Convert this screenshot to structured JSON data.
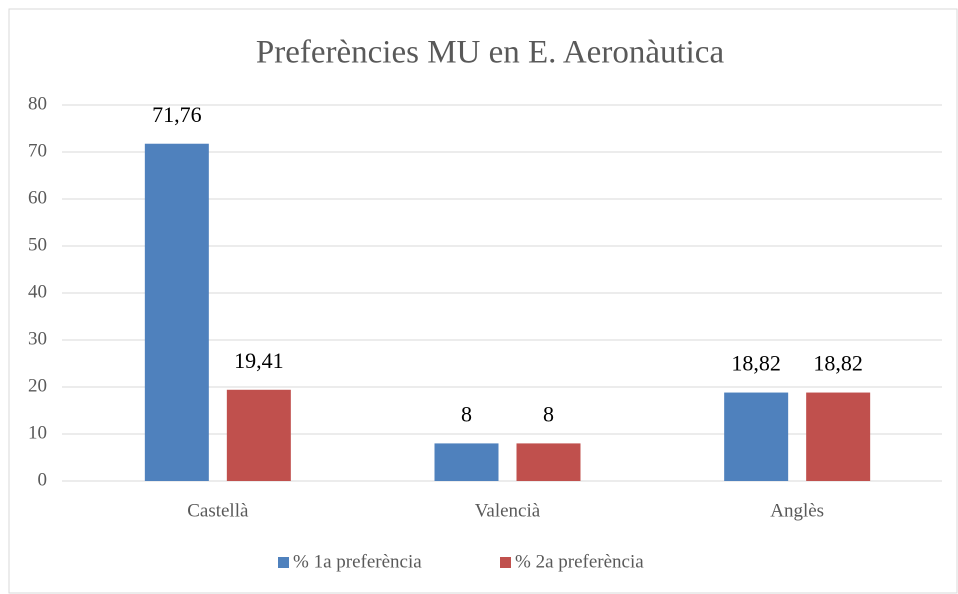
{
  "chart_data": {
    "type": "bar",
    "title": "Preferències MU en E. Aeronàutica",
    "categories": [
      "Castellà",
      "Valencià",
      "Anglès"
    ],
    "series": [
      {
        "name": "% 1a preferència",
        "color": "#4f81bd",
        "values": [
          71.76,
          8,
          18.82
        ],
        "value_labels": [
          "71,76",
          "8",
          "18,82"
        ]
      },
      {
        "name": "% 2a preferència",
        "color": "#c0504d",
        "values": [
          19.41,
          8,
          18.82
        ],
        "value_labels": [
          "19,41",
          "8",
          "18,82"
        ]
      }
    ],
    "ylim": [
      0,
      80
    ],
    "yticks": [
      0,
      10,
      20,
      30,
      40,
      50,
      60,
      70,
      80
    ],
    "grid": true,
    "legend": "bottom"
  }
}
